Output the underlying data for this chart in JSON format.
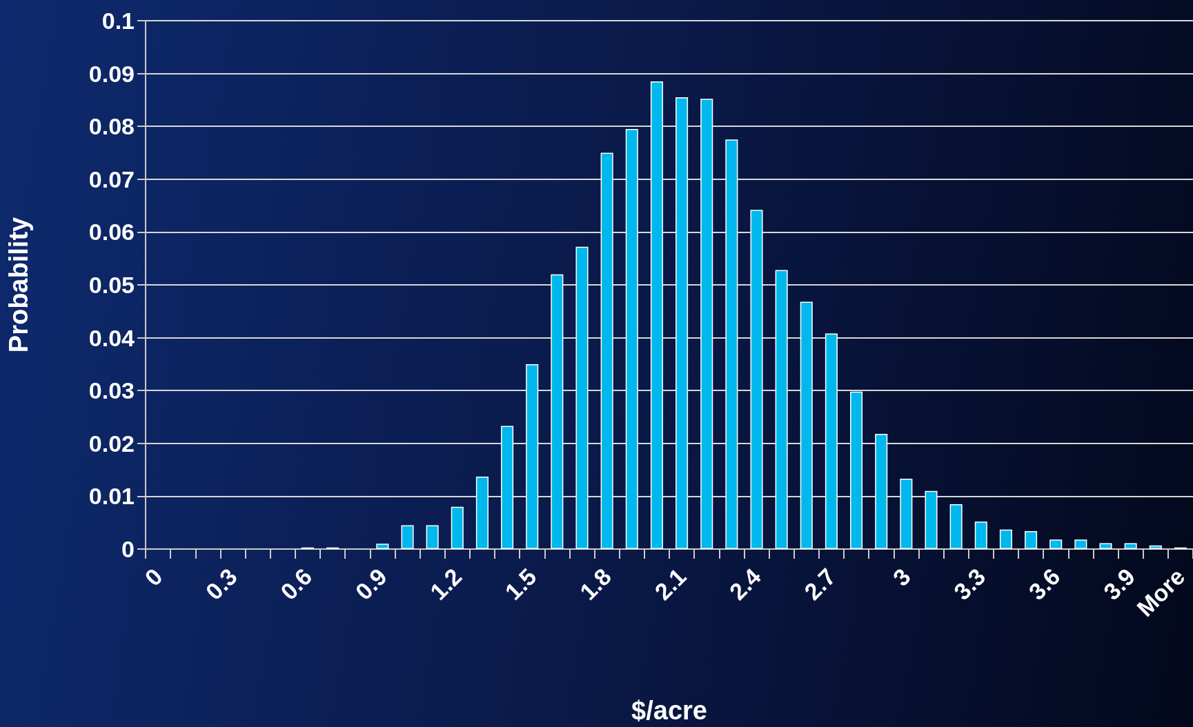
{
  "chart_data": {
    "type": "bar",
    "xlabel": "$/acre",
    "ylabel": "Probability",
    "categories": [
      "0",
      null,
      null,
      "0.3",
      null,
      null,
      "0.6",
      null,
      null,
      "0.9",
      null,
      null,
      "1.2",
      null,
      null,
      "1.5",
      null,
      null,
      "1.8",
      null,
      null,
      "2.1",
      null,
      null,
      "2.4",
      null,
      null,
      "2.7",
      null,
      null,
      "3",
      null,
      null,
      "3.3",
      null,
      null,
      "3.6",
      null,
      null,
      "3.9",
      null,
      "More"
    ],
    "values": [
      0,
      0,
      0,
      0,
      0,
      0,
      0.0003,
      0.0003,
      0,
      0.001,
      0.0045,
      0.0045,
      0.008,
      0.0137,
      0.0233,
      0.035,
      0.052,
      0.0572,
      0.075,
      0.0795,
      0.0885,
      0.0855,
      0.0852,
      0.0775,
      0.0642,
      0.0528,
      0.0468,
      0.0408,
      0.0298,
      0.0218,
      0.0133,
      0.011,
      0.0085,
      0.0052,
      0.0037,
      0.0034,
      0.0018,
      0.0018,
      0.0011,
      0.0011,
      0.0007,
      0.0003
    ],
    "color": "#00b8ee",
    "ylim": [
      0,
      0.1
    ],
    "yticks": [
      0,
      0.01,
      0.02,
      0.03,
      0.04,
      0.05,
      0.06,
      0.07,
      0.08,
      0.09,
      0.1
    ],
    "grid": "y"
  }
}
